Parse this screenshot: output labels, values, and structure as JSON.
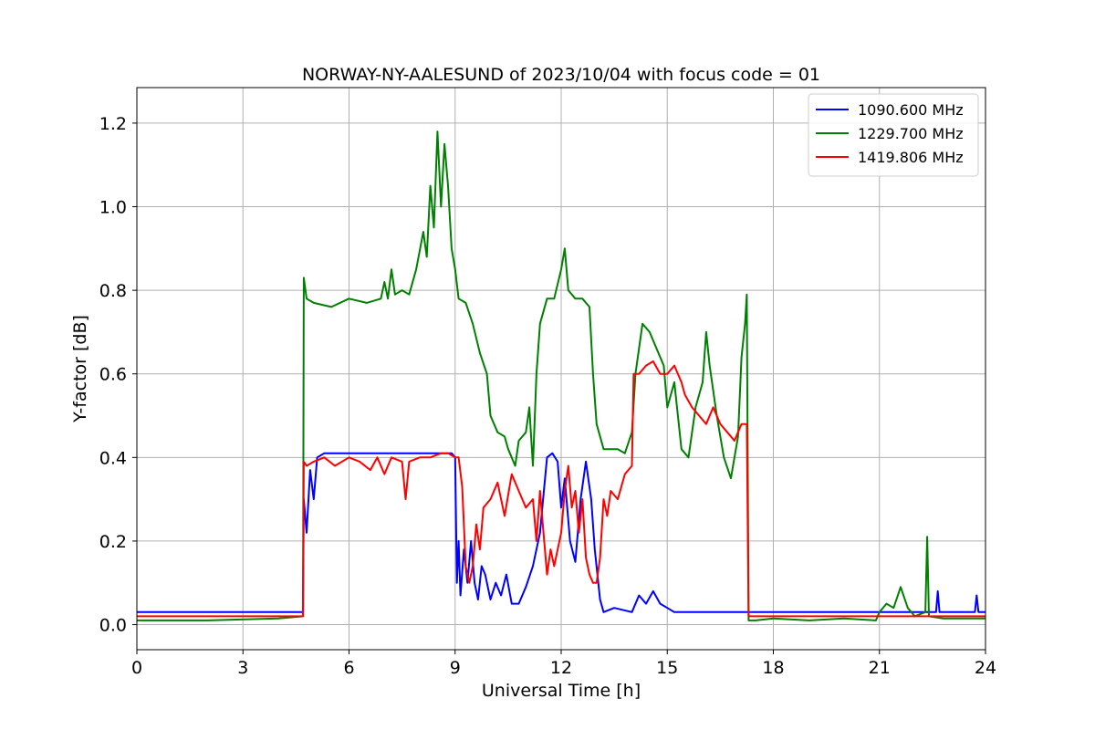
{
  "chart_data": {
    "type": "line",
    "title": "NORWAY-NY-AALESUND of 2023/10/04 with focus code = 01",
    "xlabel": "Universal Time [h]",
    "ylabel": "Y-factor [dB]",
    "xlim": [
      0,
      24
    ],
    "ylim": [
      -0.06,
      1.285
    ],
    "xticks": [
      0,
      3,
      6,
      9,
      12,
      15,
      18,
      21,
      24
    ],
    "xtick_labels": [
      "0",
      "3",
      "6",
      "9",
      "12",
      "15",
      "18",
      "21",
      "24"
    ],
    "yticks": [
      0.0,
      0.2,
      0.4,
      0.6,
      0.8,
      1.0,
      1.2
    ],
    "ytick_labels": [
      "0.0",
      "0.2",
      "0.4",
      "0.6",
      "0.8",
      "1.0",
      "1.2"
    ],
    "grid": true,
    "legend_position": "top-right",
    "series": [
      {
        "name": "1090.600 MHz",
        "color": "#0000ff",
        "points": [
          [
            0,
            0.03
          ],
          [
            2.0,
            0.03
          ],
          [
            4.0,
            0.03
          ],
          [
            4.7,
            0.03
          ],
          [
            4.72,
            0.3
          ],
          [
            4.8,
            0.22
          ],
          [
            4.9,
            0.37
          ],
          [
            5.0,
            0.3
          ],
          [
            5.1,
            0.4
          ],
          [
            5.3,
            0.41
          ],
          [
            6.0,
            0.41
          ],
          [
            7.0,
            0.41
          ],
          [
            8.0,
            0.41
          ],
          [
            8.9,
            0.41
          ],
          [
            9.0,
            0.4
          ],
          [
            9.05,
            0.1
          ],
          [
            9.1,
            0.2
          ],
          [
            9.15,
            0.07
          ],
          [
            9.25,
            0.18
          ],
          [
            9.35,
            0.1
          ],
          [
            9.45,
            0.2
          ],
          [
            9.55,
            0.1
          ],
          [
            9.65,
            0.06
          ],
          [
            9.75,
            0.14
          ],
          [
            9.85,
            0.12
          ],
          [
            10.0,
            0.06
          ],
          [
            10.15,
            0.1
          ],
          [
            10.3,
            0.07
          ],
          [
            10.45,
            0.12
          ],
          [
            10.6,
            0.05
          ],
          [
            10.8,
            0.05
          ],
          [
            11.0,
            0.09
          ],
          [
            11.2,
            0.14
          ],
          [
            11.4,
            0.22
          ],
          [
            11.5,
            0.31
          ],
          [
            11.6,
            0.4
          ],
          [
            11.75,
            0.41
          ],
          [
            11.9,
            0.39
          ],
          [
            12.0,
            0.28
          ],
          [
            12.1,
            0.35
          ],
          [
            12.25,
            0.2
          ],
          [
            12.4,
            0.15
          ],
          [
            12.55,
            0.3
          ],
          [
            12.7,
            0.39
          ],
          [
            12.85,
            0.3
          ],
          [
            12.95,
            0.18
          ],
          [
            13.1,
            0.06
          ],
          [
            13.2,
            0.03
          ],
          [
            13.5,
            0.04
          ],
          [
            14.0,
            0.03
          ],
          [
            14.2,
            0.07
          ],
          [
            14.4,
            0.05
          ],
          [
            14.6,
            0.08
          ],
          [
            14.8,
            0.05
          ],
          [
            15.0,
            0.04
          ],
          [
            15.2,
            0.03
          ],
          [
            16.0,
            0.03
          ],
          [
            17.0,
            0.03
          ],
          [
            17.3,
            0.03
          ],
          [
            18.0,
            0.03
          ],
          [
            20.0,
            0.03
          ],
          [
            22.6,
            0.03
          ],
          [
            22.65,
            0.08
          ],
          [
            22.7,
            0.03
          ],
          [
            23.7,
            0.03
          ],
          [
            23.75,
            0.07
          ],
          [
            23.8,
            0.03
          ],
          [
            24.0,
            0.03
          ]
        ]
      },
      {
        "name": "1229.700 MHz",
        "color": "#008000",
        "points": [
          [
            0,
            0.01
          ],
          [
            2.0,
            0.01
          ],
          [
            4.0,
            0.015
          ],
          [
            4.7,
            0.02
          ],
          [
            4.72,
            0.83
          ],
          [
            4.8,
            0.78
          ],
          [
            5.0,
            0.77
          ],
          [
            5.5,
            0.76
          ],
          [
            6.0,
            0.78
          ],
          [
            6.5,
            0.77
          ],
          [
            6.9,
            0.78
          ],
          [
            7.0,
            0.82
          ],
          [
            7.1,
            0.78
          ],
          [
            7.2,
            0.85
          ],
          [
            7.3,
            0.79
          ],
          [
            7.5,
            0.8
          ],
          [
            7.7,
            0.79
          ],
          [
            7.9,
            0.85
          ],
          [
            8.1,
            0.94
          ],
          [
            8.2,
            0.88
          ],
          [
            8.3,
            1.05
          ],
          [
            8.4,
            0.95
          ],
          [
            8.5,
            1.18
          ],
          [
            8.6,
            1.0
          ],
          [
            8.7,
            1.15
          ],
          [
            8.8,
            1.05
          ],
          [
            8.9,
            0.9
          ],
          [
            9.0,
            0.85
          ],
          [
            9.1,
            0.78
          ],
          [
            9.3,
            0.77
          ],
          [
            9.5,
            0.72
          ],
          [
            9.7,
            0.65
          ],
          [
            9.9,
            0.6
          ],
          [
            10.0,
            0.5
          ],
          [
            10.2,
            0.46
          ],
          [
            10.4,
            0.45
          ],
          [
            10.5,
            0.42
          ],
          [
            10.7,
            0.38
          ],
          [
            10.8,
            0.44
          ],
          [
            11.0,
            0.46
          ],
          [
            11.1,
            0.52
          ],
          [
            11.2,
            0.38
          ],
          [
            11.3,
            0.6
          ],
          [
            11.4,
            0.72
          ],
          [
            11.6,
            0.78
          ],
          [
            11.8,
            0.78
          ],
          [
            12.0,
            0.85
          ],
          [
            12.1,
            0.9
          ],
          [
            12.2,
            0.8
          ],
          [
            12.4,
            0.78
          ],
          [
            12.6,
            0.78
          ],
          [
            12.8,
            0.76
          ],
          [
            12.9,
            0.6
          ],
          [
            13.0,
            0.48
          ],
          [
            13.2,
            0.42
          ],
          [
            13.4,
            0.42
          ],
          [
            13.6,
            0.42
          ],
          [
            13.8,
            0.41
          ],
          [
            14.0,
            0.46
          ],
          [
            14.1,
            0.6
          ],
          [
            14.3,
            0.72
          ],
          [
            14.5,
            0.7
          ],
          [
            14.7,
            0.66
          ],
          [
            14.9,
            0.62
          ],
          [
            15.0,
            0.52
          ],
          [
            15.2,
            0.58
          ],
          [
            15.4,
            0.42
          ],
          [
            15.6,
            0.4
          ],
          [
            15.8,
            0.52
          ],
          [
            16.0,
            0.58
          ],
          [
            16.1,
            0.7
          ],
          [
            16.2,
            0.62
          ],
          [
            16.4,
            0.5
          ],
          [
            16.6,
            0.4
          ],
          [
            16.8,
            0.35
          ],
          [
            17.0,
            0.45
          ],
          [
            17.1,
            0.64
          ],
          [
            17.2,
            0.72
          ],
          [
            17.25,
            0.79
          ],
          [
            17.3,
            0.01
          ],
          [
            17.5,
            0.01
          ],
          [
            18.0,
            0.015
          ],
          [
            19.0,
            0.01
          ],
          [
            20.0,
            0.015
          ],
          [
            20.9,
            0.01
          ],
          [
            21.0,
            0.03
          ],
          [
            21.2,
            0.05
          ],
          [
            21.4,
            0.04
          ],
          [
            21.6,
            0.09
          ],
          [
            21.8,
            0.04
          ],
          [
            22.0,
            0.02
          ],
          [
            22.3,
            0.03
          ],
          [
            22.35,
            0.21
          ],
          [
            22.4,
            0.02
          ],
          [
            22.8,
            0.015
          ],
          [
            23.5,
            0.015
          ],
          [
            24.0,
            0.015
          ]
        ]
      },
      {
        "name": "1419.806 MHz",
        "color": "#ff0000",
        "points": [
          [
            0,
            0.02
          ],
          [
            2.0,
            0.02
          ],
          [
            4.0,
            0.02
          ],
          [
            4.7,
            0.02
          ],
          [
            4.72,
            0.39
          ],
          [
            4.8,
            0.38
          ],
          [
            5.0,
            0.39
          ],
          [
            5.3,
            0.4
          ],
          [
            5.6,
            0.38
          ],
          [
            6.0,
            0.4
          ],
          [
            6.3,
            0.39
          ],
          [
            6.6,
            0.37
          ],
          [
            6.8,
            0.4
          ],
          [
            7.0,
            0.36
          ],
          [
            7.2,
            0.4
          ],
          [
            7.5,
            0.39
          ],
          [
            7.6,
            0.3
          ],
          [
            7.7,
            0.39
          ],
          [
            8.0,
            0.4
          ],
          [
            8.3,
            0.4
          ],
          [
            8.6,
            0.41
          ],
          [
            8.8,
            0.41
          ],
          [
            9.0,
            0.4
          ],
          [
            9.1,
            0.4
          ],
          [
            9.2,
            0.33
          ],
          [
            9.3,
            0.14
          ],
          [
            9.4,
            0.1
          ],
          [
            9.5,
            0.14
          ],
          [
            9.6,
            0.24
          ],
          [
            9.7,
            0.18
          ],
          [
            9.8,
            0.28
          ],
          [
            10.0,
            0.3
          ],
          [
            10.2,
            0.34
          ],
          [
            10.4,
            0.26
          ],
          [
            10.6,
            0.36
          ],
          [
            10.8,
            0.32
          ],
          [
            11.0,
            0.28
          ],
          [
            11.2,
            0.3
          ],
          [
            11.3,
            0.2
          ],
          [
            11.4,
            0.32
          ],
          [
            11.5,
            0.22
          ],
          [
            11.6,
            0.12
          ],
          [
            11.7,
            0.18
          ],
          [
            11.8,
            0.14
          ],
          [
            12.0,
            0.22
          ],
          [
            12.1,
            0.32
          ],
          [
            12.2,
            0.38
          ],
          [
            12.3,
            0.28
          ],
          [
            12.4,
            0.32
          ],
          [
            12.5,
            0.22
          ],
          [
            12.6,
            0.3
          ],
          [
            12.7,
            0.16
          ],
          [
            12.8,
            0.12
          ],
          [
            12.9,
            0.1
          ],
          [
            13.0,
            0.1
          ],
          [
            13.1,
            0.16
          ],
          [
            13.2,
            0.3
          ],
          [
            13.3,
            0.26
          ],
          [
            13.4,
            0.32
          ],
          [
            13.6,
            0.3
          ],
          [
            13.8,
            0.36
          ],
          [
            14.0,
            0.38
          ],
          [
            14.05,
            0.6
          ],
          [
            14.2,
            0.6
          ],
          [
            14.4,
            0.62
          ],
          [
            14.6,
            0.63
          ],
          [
            14.8,
            0.6
          ],
          [
            15.0,
            0.6
          ],
          [
            15.2,
            0.62
          ],
          [
            15.4,
            0.58
          ],
          [
            15.5,
            0.55
          ],
          [
            15.7,
            0.52
          ],
          [
            15.9,
            0.5
          ],
          [
            16.1,
            0.48
          ],
          [
            16.3,
            0.52
          ],
          [
            16.5,
            0.48
          ],
          [
            16.7,
            0.46
          ],
          [
            16.9,
            0.44
          ],
          [
            17.1,
            0.48
          ],
          [
            17.25,
            0.48
          ],
          [
            17.3,
            0.02
          ],
          [
            17.5,
            0.02
          ],
          [
            18.0,
            0.02
          ],
          [
            20.0,
            0.02
          ],
          [
            22.0,
            0.02
          ],
          [
            24.0,
            0.02
          ]
        ]
      }
    ]
  }
}
